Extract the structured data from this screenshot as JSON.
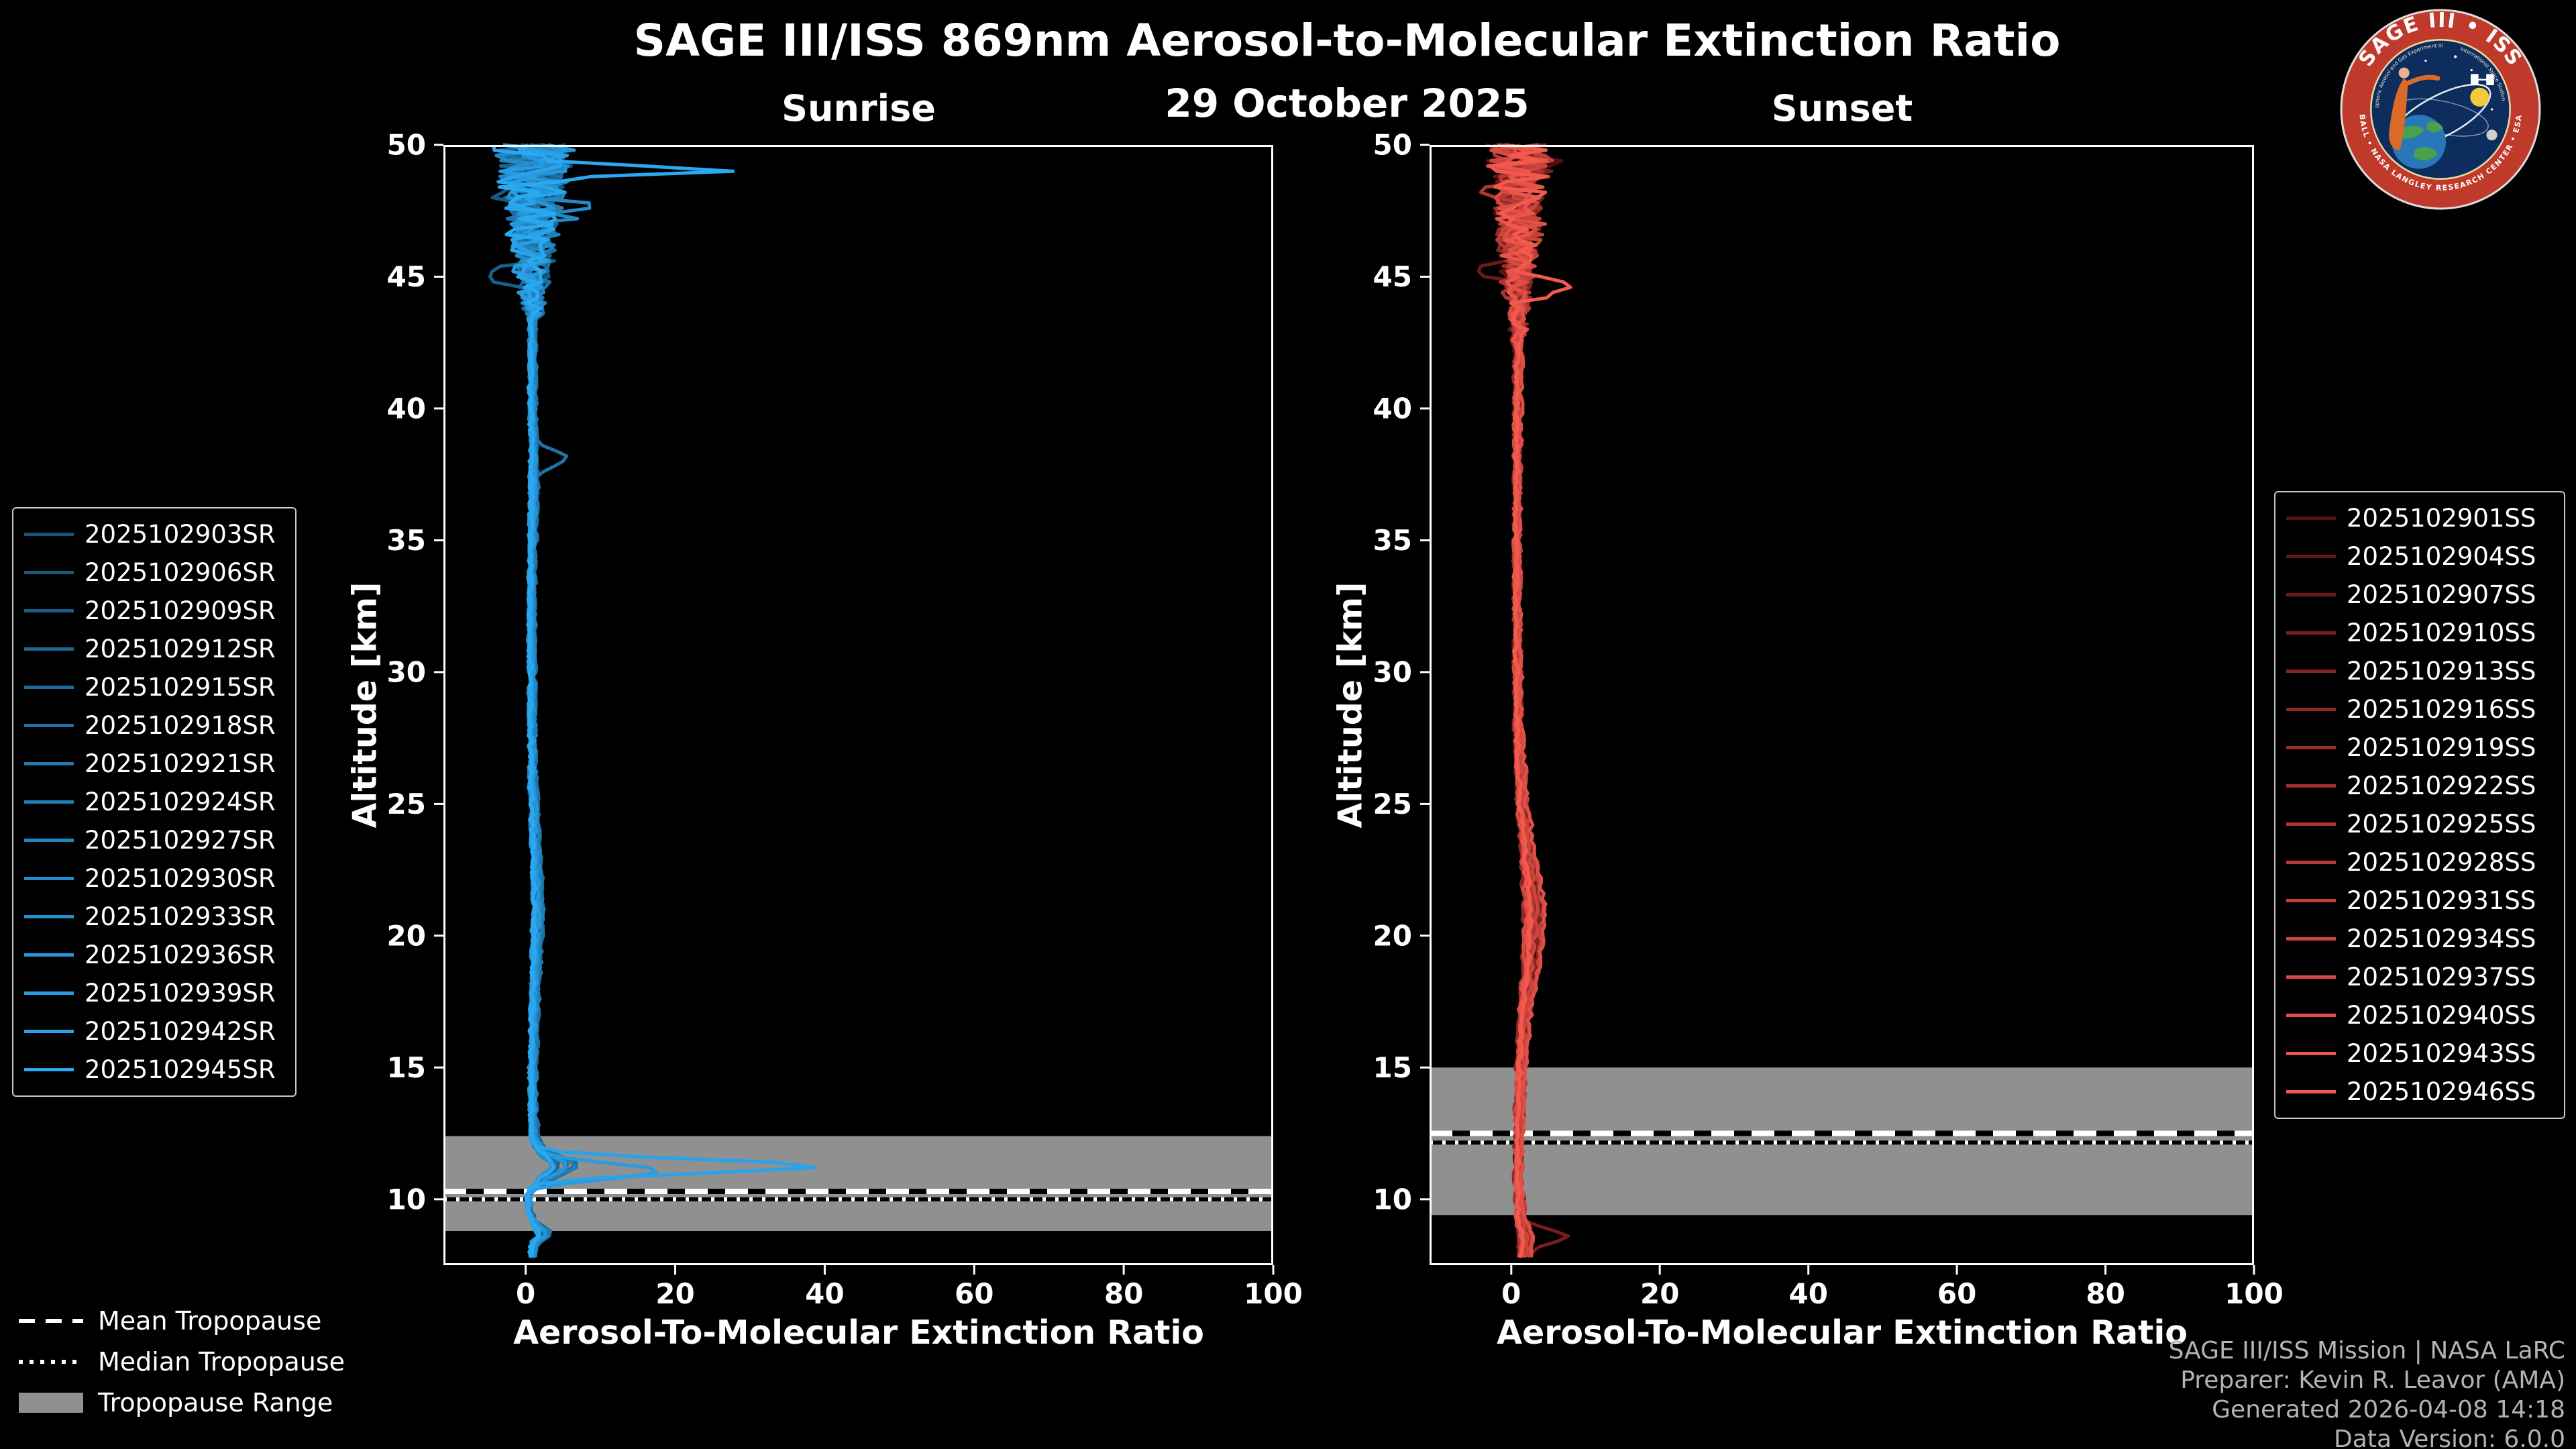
{
  "header": {
    "title": "SAGE III/ISS 869nm Aerosol-to-Molecular Extinction Ratio",
    "date": "29 October 2025"
  },
  "logo": {
    "title_arc": "SAGE III • ISS",
    "small_left": "Stratospheric Aerosol and Gas Experiment III",
    "small_right": "International Space Station",
    "bottom_arc": "BALL • NASA LANGLEY RESEARCH CENTER • ESA"
  },
  "tropopause_legend": {
    "mean": "Mean Tropopause",
    "median": "Median Tropopause",
    "range": "Tropopause Range"
  },
  "credits": {
    "line1": "SAGE III/ISS Mission | NASA LaRC",
    "line2": "Preparer: Kevin R. Leavor (AMA)",
    "line3": "Generated 2026-04-08 14:18",
    "line4": "Data Version: 6.0.0"
  },
  "colors": {
    "background": "#000000",
    "text": "#ffffff",
    "tropopause_band": "#909090",
    "credits": "#b3b3b3",
    "axis": "#ffffff"
  },
  "chart_data": [
    {
      "type": "line",
      "title": "Sunrise",
      "xlabel": "Aerosol-To-Molecular Extinction Ratio",
      "ylabel": "Altitude [km]",
      "xlim": [
        -11,
        100
      ],
      "ylim": [
        7.5,
        50
      ],
      "xticks": [
        0,
        20,
        40,
        60,
        80,
        100
      ],
      "yticks": [
        10,
        15,
        20,
        25,
        30,
        35,
        40,
        45,
        50
      ],
      "legend_position": "left",
      "tropopause": {
        "range_km": [
          8.8,
          12.4
        ],
        "mean_km": 10.3,
        "median_km": 10.0
      },
      "noise": {
        "start_alt_km": 43.5,
        "amplitude": 3.0
      },
      "base_profile": [
        [
          7.5,
          0.8
        ],
        [
          8.3,
          1.2
        ],
        [
          8.7,
          3.0
        ],
        [
          9.1,
          1.2
        ],
        [
          9.6,
          0.4
        ],
        [
          10.3,
          0.5
        ],
        [
          10.9,
          3.5
        ],
        [
          11.3,
          6.0
        ],
        [
          11.8,
          2.5
        ],
        [
          12.3,
          1.2
        ],
        [
          14,
          1.0
        ],
        [
          18,
          1.3
        ],
        [
          21,
          1.8
        ],
        [
          23,
          1.5
        ],
        [
          26,
          1.0
        ],
        [
          30,
          0.9
        ],
        [
          34,
          0.9
        ],
        [
          37,
          1.2
        ],
        [
          40,
          1.0
        ],
        [
          44,
          1.0
        ],
        [
          47,
          1.0
        ],
        [
          50,
          1.2
        ]
      ],
      "features": [
        {
          "series": 13,
          "alt": 11.25,
          "value": 36,
          "width": 0.35
        },
        {
          "series": 12,
          "alt": 11.05,
          "value": 15,
          "width": 0.4
        },
        {
          "series": 14,
          "alt": 49.05,
          "value": 25,
          "width": 0.3
        },
        {
          "series": 2,
          "alt": 45.0,
          "value": -7,
          "width": 0.35
        },
        {
          "series": 5,
          "alt": 38.1,
          "value": 4,
          "width": 0.4
        },
        {
          "series": 9,
          "alt": 47.5,
          "value": 6,
          "width": 0.4
        },
        {
          "series": 1,
          "alt": 48.3,
          "value": -6,
          "width": 0.35
        }
      ],
      "series": [
        {
          "name": "2025102903SR",
          "color": "#175379"
        },
        {
          "name": "2025102906SR",
          "color": "#185982"
        },
        {
          "name": "2025102909SR",
          "color": "#1a5f8a"
        },
        {
          "name": "2025102912SR",
          "color": "#1b6593"
        },
        {
          "name": "2025102915SR",
          "color": "#1c6c9c"
        },
        {
          "name": "2025102918SR",
          "color": "#1e72a4"
        },
        {
          "name": "2025102921SR",
          "color": "#1f78ad"
        },
        {
          "name": "2025102924SR",
          "color": "#217eb6"
        },
        {
          "name": "2025102927SR",
          "color": "#2284be"
        },
        {
          "name": "2025102930SR",
          "color": "#238ac7"
        },
        {
          "name": "2025102933SR",
          "color": "#2590d0"
        },
        {
          "name": "2025102936SR",
          "color": "#2696d8"
        },
        {
          "name": "2025102939SR",
          "color": "#279de1"
        },
        {
          "name": "2025102942SR",
          "color": "#29a3ea"
        },
        {
          "name": "2025102945SR",
          "color": "#2aa9f2"
        }
      ]
    },
    {
      "type": "line",
      "title": "Sunset",
      "xlabel": "Aerosol-To-Molecular Extinction Ratio",
      "ylabel": "Altitude [km]",
      "xlim": [
        -11,
        100
      ],
      "ylim": [
        7.5,
        50
      ],
      "xticks": [
        0,
        20,
        40,
        60,
        80,
        100
      ],
      "yticks": [
        10,
        15,
        20,
        25,
        30,
        35,
        40,
        45,
        50
      ],
      "legend_position": "right",
      "tropopause": {
        "range_km": [
          9.4,
          15.0
        ],
        "mean_km": 12.5,
        "median_km": 12.15
      },
      "noise": {
        "start_alt_km": 42.5,
        "amplitude": 2.4
      },
      "base_profile": [
        [
          7.5,
          1.5
        ],
        [
          8.5,
          2.2
        ],
        [
          9.2,
          1.3
        ],
        [
          11,
          1.0
        ],
        [
          13,
          1.1
        ],
        [
          15,
          1.4
        ],
        [
          17,
          1.8
        ],
        [
          19,
          2.8
        ],
        [
          21,
          3.2
        ],
        [
          23,
          2.4
        ],
        [
          25,
          1.5
        ],
        [
          28,
          1.0
        ],
        [
          32,
          0.8
        ],
        [
          36,
          0.8
        ],
        [
          40,
          0.9
        ],
        [
          44,
          1.0
        ],
        [
          47,
          1.0
        ],
        [
          50,
          1.1
        ]
      ],
      "features": [
        {
          "series": 15,
          "alt": 44.6,
          "value": 8,
          "width": 0.4
        },
        {
          "series": 3,
          "alt": 8.6,
          "value": 5,
          "width": 0.35
        },
        {
          "series": 2,
          "alt": 45.3,
          "value": -5,
          "width": 0.4
        },
        {
          "series": 0,
          "alt": 49.4,
          "value": 5,
          "width": 0.35
        },
        {
          "series": 8,
          "alt": 48.0,
          "value": -4,
          "width": 0.4
        }
      ],
      "series": [
        {
          "name": "2025102901SS",
          "color": "#5a0f0f"
        },
        {
          "name": "2025102904SS",
          "color": "#641413"
        },
        {
          "name": "2025102907SS",
          "color": "#6f1917"
        },
        {
          "name": "2025102910SS",
          "color": "#791e1c"
        },
        {
          "name": "2025102913SS",
          "color": "#832320"
        },
        {
          "name": "2025102916SS",
          "color": "#8d2824"
        },
        {
          "name": "2025102919SS",
          "color": "#982c28"
        },
        {
          "name": "2025102922SS",
          "color": "#a2312c"
        },
        {
          "name": "2025102925SS",
          "color": "#ac3631"
        },
        {
          "name": "2025102928SS",
          "color": "#b73b35"
        },
        {
          "name": "2025102931SS",
          "color": "#c14039"
        },
        {
          "name": "2025102934SS",
          "color": "#cb453d"
        },
        {
          "name": "2025102937SS",
          "color": "#d54a42"
        },
        {
          "name": "2025102940SS",
          "color": "#e04f46"
        },
        {
          "name": "2025102943SS",
          "color": "#ea544a"
        },
        {
          "name": "2025102946SS",
          "color": "#f4594e"
        }
      ]
    }
  ]
}
